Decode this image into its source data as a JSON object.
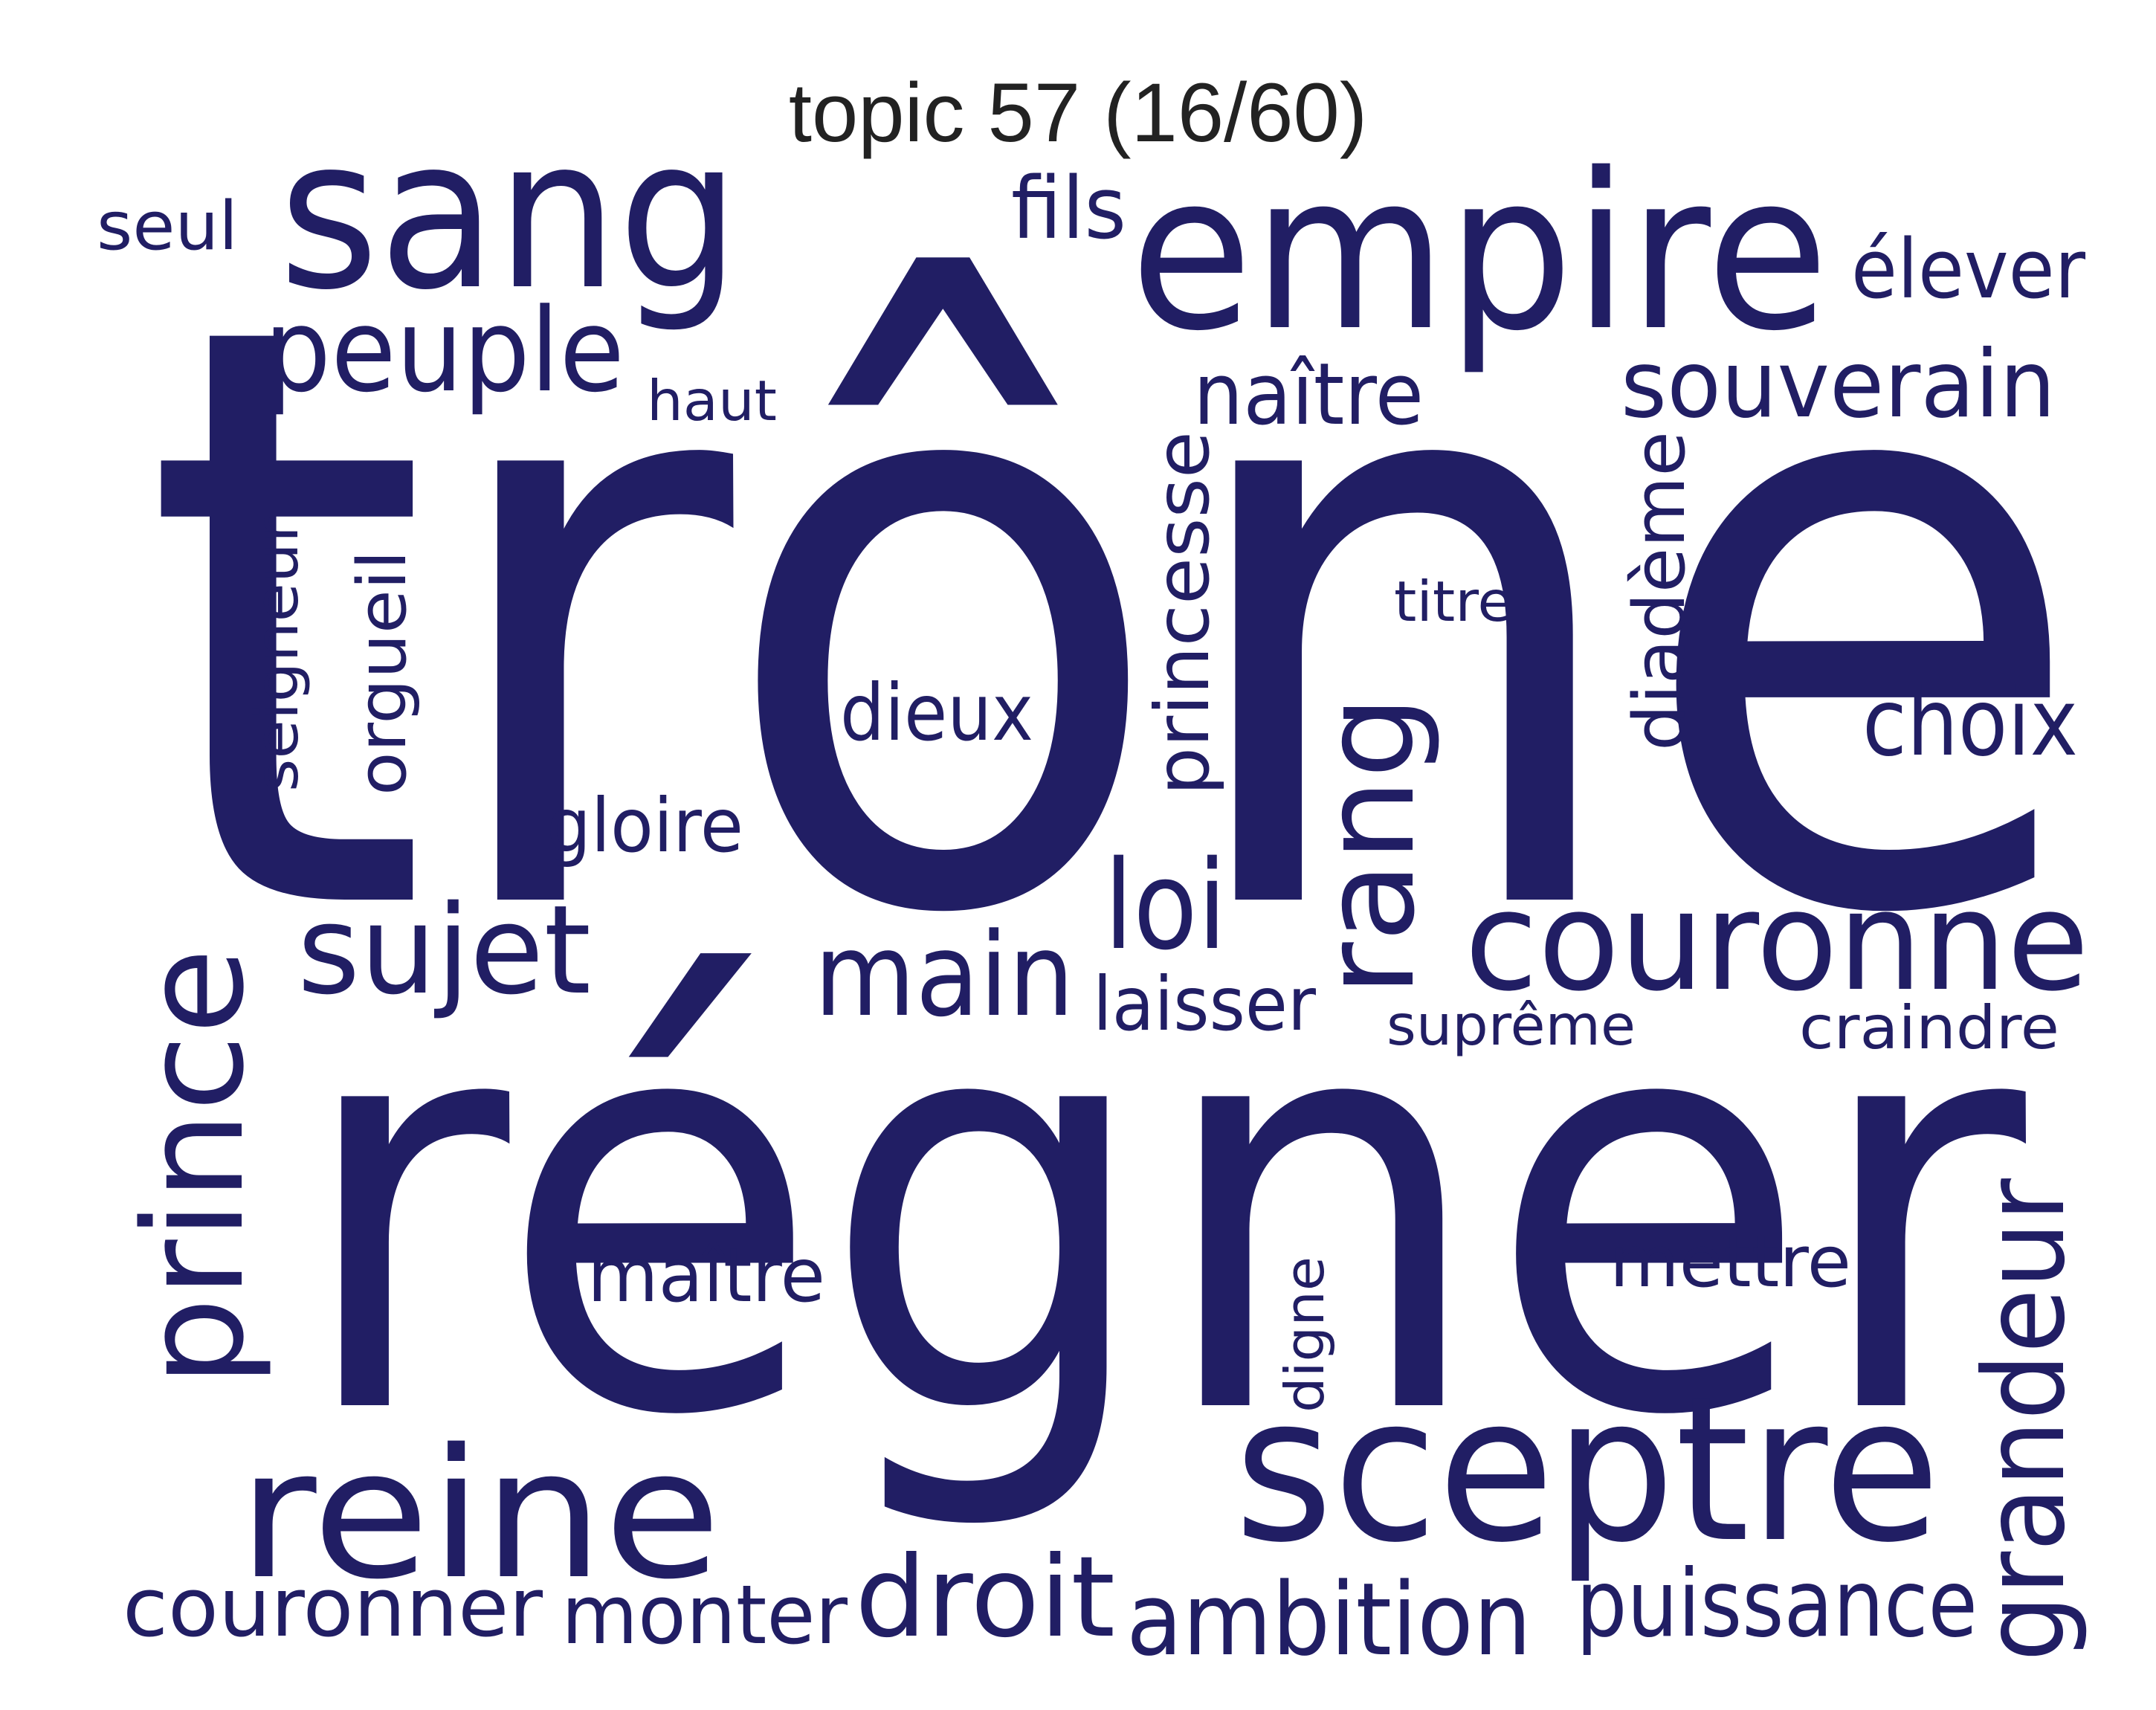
{
  "title": "topic 57 (16/60)",
  "word_color": "#211e64",
  "title_color": "#222222",
  "words": {
    "trone": "trône",
    "regner": "régner",
    "empire": "empire",
    "sang": "sang",
    "sceptre": "sceptre",
    "couronne": "couronne",
    "reine": "reine",
    "prince": "prince",
    "rang": "rang",
    "peuple": "peuple",
    "sujet": "sujet",
    "main": "main",
    "droit": "droit",
    "ambition": "ambition",
    "puissance": "puissance",
    "grandeur": "grandeur",
    "souverain": "souverain",
    "couronner": "couronner",
    "monter": "monter",
    "loi": "loi",
    "choix": "choix",
    "naitre": "naître",
    "elever": "élever",
    "fils": "fils",
    "seul": "seul",
    "dieux": "dieux",
    "gloire": "gloire",
    "laisser": "laisser",
    "maitre": "maître",
    "mettre": "mettre",
    "princesse": "princesse",
    "diademe": "diadème",
    "orgueil": "orgueil",
    "seigneur": "seigneur",
    "haut": "haut",
    "titre": "titre",
    "supreme": "suprême",
    "craindre": "craindre",
    "digne": "digne"
  }
}
